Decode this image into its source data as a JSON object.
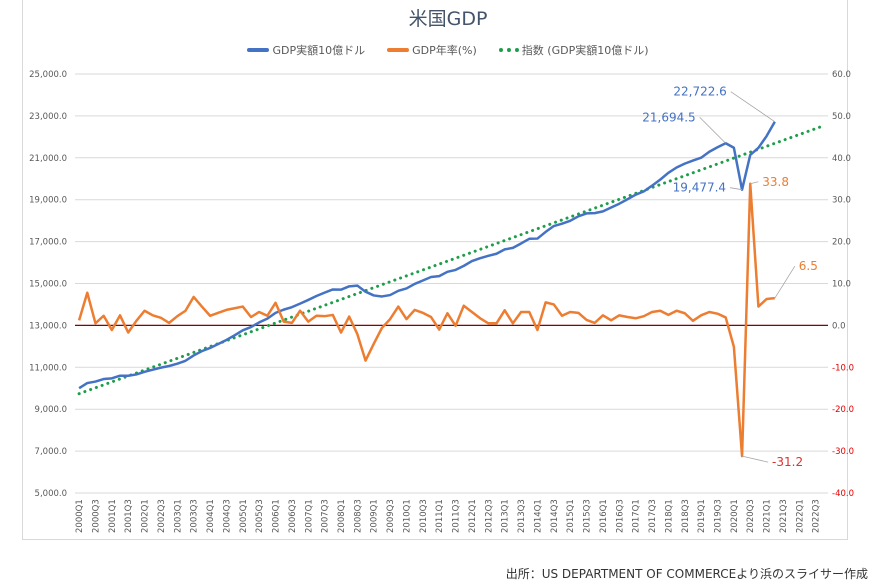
{
  "chart_data": {
    "type": "line",
    "title": "米国GDP",
    "source": "出所：US DEPARTMENT OF COMMERCEより浜のスライサー作成",
    "colors": {
      "gdp": "#4472c4",
      "growth": "#ed7d31",
      "trend": "#1e9e4a",
      "zero_line": "#8b0000",
      "negative_tick": "#e00000"
    },
    "legend": {
      "placement": "top",
      "entries": [
        "GDP実額10億ドル",
        "GDP年率(%)",
        "指数 (GDP実額10億ドル)"
      ]
    },
    "grid": true,
    "y_left": {
      "range": [
        5000,
        25000
      ],
      "step": 2000,
      "ticks": [
        "25,000.0",
        "23,000.0",
        "21,000.0",
        "19,000.0",
        "17,000.0",
        "15,000.0",
        "13,000.0",
        "11,000.0",
        "9,000.0",
        "7,000.0",
        "5,000.0"
      ]
    },
    "y_right": {
      "range": [
        -40,
        60
      ],
      "step": 10,
      "ticks": [
        "60.0",
        "50.0",
        "40.0",
        "30.0",
        "20.0",
        "10.0",
        "0.0",
        "-10.0",
        "-20.0",
        "-30.0",
        "-40.0"
      ]
    },
    "x_start_year": 2000,
    "x_end": "2022Q4",
    "series": [
      {
        "name": "GDP実額10億ドル",
        "axis": "left",
        "values": [
          10002,
          10248,
          10319,
          10439,
          10473,
          10597,
          10597,
          10660,
          10783,
          10887,
          10984,
          11062,
          11174,
          11312,
          11566,
          11772,
          11923,
          12112,
          12305,
          12527,
          12767,
          12922,
          13142,
          13324,
          13599,
          13753,
          13871,
          14039,
          14216,
          14402,
          14564,
          14716,
          14706,
          14865,
          14899,
          14609,
          14430,
          14382,
          14448,
          14651,
          14765,
          14980,
          15142,
          15309,
          15351,
          15558,
          15648,
          15842,
          16069,
          16207,
          16320,
          16420,
          16629,
          16700,
          16911,
          17134,
          17145,
          17462,
          17743,
          17853,
          17992,
          18207,
          18346,
          18360,
          18443,
          18626,
          18809,
          19021,
          19240,
          19398,
          19668,
          19958,
          20283,
          20537,
          20722,
          20867,
          21003,
          21290,
          21505,
          21694.5,
          21481,
          19477.4,
          21138.6,
          21477.6,
          22038.2,
          22722.6
        ]
      },
      {
        "name": "GDP年率(%)",
        "axis": "right",
        "values": [
          1.2,
          7.8,
          0.5,
          2.3,
          -1.1,
          2.4,
          -1.7,
          1.1,
          3.5,
          2.4,
          1.8,
          0.6,
          2.2,
          3.5,
          6.8,
          4.5,
          2.3,
          3.0,
          3.7,
          4.1,
          4.5,
          2.0,
          3.2,
          2.3,
          5.4,
          0.9,
          0.6,
          3.5,
          0.9,
          2.3,
          2.2,
          2.5,
          -1.7,
          2.1,
          -2.1,
          -8.4,
          -4.4,
          -0.6,
          1.5,
          4.5,
          1.5,
          3.7,
          3.0,
          2.0,
          -1.0,
          2.9,
          -0.1,
          4.7,
          3.2,
          1.7,
          0.5,
          0.5,
          3.6,
          0.5,
          3.2,
          3.2,
          -1.1,
          5.5,
          5.0,
          2.3,
          3.2,
          3.0,
          1.3,
          0.6,
          2.4,
          1.2,
          2.4,
          2.0,
          1.7,
          2.2,
          3.2,
          3.5,
          2.5,
          3.5,
          2.9,
          1.1,
          2.4,
          3.2,
          2.8,
          1.9,
          -5.1,
          -31.2,
          33.8,
          4.5,
          6.3,
          6.5
        ]
      },
      {
        "name": "指数 (GDP実額10億ドル)",
        "axis": "left",
        "trendline": "linear",
        "of": "GDP実額10億ドル"
      }
    ],
    "annotations": [
      {
        "label": "22,722.6",
        "series": "GDP実額10億ドル",
        "category": "2021Q2"
      },
      {
        "label": "21,694.5",
        "series": "GDP実額10億ドル",
        "category": "2019Q4"
      },
      {
        "label": "19,477.4",
        "series": "GDP実額10億ドル",
        "category": "2020Q2"
      },
      {
        "label": "33.8",
        "series": "GDP年率(%)",
        "category": "2020Q3"
      },
      {
        "label": "6.5",
        "series": "GDP年率(%)",
        "category": "2021Q2"
      },
      {
        "label": "-31.2",
        "series": "GDP年率(%)",
        "category": "2020Q2"
      }
    ]
  }
}
